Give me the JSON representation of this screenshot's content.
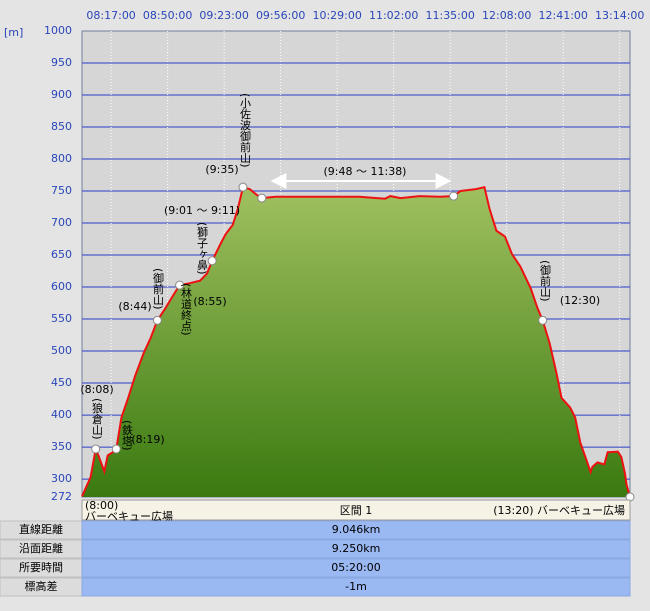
{
  "chart_data": {
    "type": "area",
    "y_unit": "[m]",
    "color": "#ee1111",
    "fill_top": "#a0c060",
    "fill_bottom": "#3a7a10",
    "grid": true,
    "x": [
      "08:00",
      "08:05",
      "08:08",
      "08:10",
      "08:13",
      "08:15",
      "08:18",
      "08:20",
      "08:23",
      "08:27",
      "08:31",
      "08:36",
      "08:40",
      "08:44",
      "08:48",
      "08:53",
      "08:57",
      "09:03",
      "09:09",
      "09:13",
      "09:16",
      "09:21",
      "09:24",
      "09:28",
      "09:31",
      "09:34",
      "09:38",
      "09:42",
      "09:45",
      "09:53",
      "10:07",
      "10:25",
      "10:42",
      "10:57",
      "11:00",
      "11:06",
      "11:17",
      "11:29",
      "11:37",
      "11:41",
      "11:50",
      "11:55",
      "11:58",
      "12:02",
      "12:07",
      "12:11",
      "12:16",
      "12:22",
      "12:26",
      "12:29",
      "12:33",
      "12:37",
      "12:40",
      "12:45",
      "12:48",
      "12:51",
      "12:54",
      "12:57",
      "12:58",
      "13:01",
      "13:05",
      "13:07",
      "13:13",
      "13:15",
      "13:17",
      "13:18",
      "13:20"
    ],
    "values": [
      273,
      303,
      347,
      334,
      312,
      337,
      342,
      347,
      396,
      427,
      461,
      497,
      520,
      548,
      564,
      586,
      603,
      606,
      610,
      621,
      641,
      668,
      683,
      697,
      722,
      756,
      753,
      744,
      739,
      741,
      741,
      741,
      741,
      738,
      742,
      739,
      742,
      741,
      742,
      750,
      753,
      756,
      722,
      688,
      679,
      652,
      632,
      598,
      567,
      548,
      513,
      466,
      427,
      412,
      396,
      357,
      334,
      311,
      319,
      326,
      323,
      342,
      343,
      334,
      309,
      291,
      272
    ],
    "xlim": [
      "08:00:00",
      "13:20:00"
    ],
    "xticks": [
      "08:17:00",
      "08:50:00",
      "09:23:00",
      "09:56:00",
      "10:29:00",
      "11:02:00",
      "11:35:00",
      "12:08:00",
      "12:41:00",
      "13:14:00"
    ],
    "ylim": [
      272,
      1000
    ],
    "yticks": [
      272,
      300,
      350,
      400,
      450,
      500,
      550,
      600,
      650,
      700,
      750,
      800,
      850,
      900,
      950,
      1000
    ],
    "waypoints": [
      {
        "x": "08:08",
        "y": 347,
        "name": "(狼倉山)",
        "time": "(8:08)"
      },
      {
        "x": "08:20",
        "y": 347,
        "name": "(鉄塔)",
        "time": "(8:19)"
      },
      {
        "x": "08:44",
        "y": 548,
        "name": "(御前山)",
        "time": "(8:44)"
      },
      {
        "x": "08:57",
        "y": 603,
        "name": "(林道終点)",
        "time": "(8:55)"
      },
      {
        "x": "09:16",
        "y": 641,
        "name": "(獅子ヶ鼻)",
        "time": "(9:01 ～ 9:11)"
      },
      {
        "x": "09:34",
        "y": 756,
        "name": "(小佐波御前山)",
        "time": "(9:35)"
      },
      {
        "x": "09:45",
        "y": 739
      },
      {
        "x": "11:37",
        "y": 742
      },
      {
        "x": "12:29",
        "y": 548,
        "name": "(御前山)",
        "time": "(12:30)"
      },
      {
        "x": "13:20",
        "y": 272
      }
    ],
    "range_label": "(9:48 ～ 11:38)"
  },
  "summary": {
    "start_time": "(8:00)",
    "start_name": "バーベキュー広場",
    "section": "区間 1",
    "end_label": "(13:20)  バーベキュー広場",
    "rows": [
      [
        "直線距離",
        "9.046km"
      ],
      [
        "沿面距離",
        "9.250km"
      ],
      [
        "所要時間",
        "05:20:00"
      ],
      [
        "標高差",
        "-1m"
      ]
    ]
  }
}
